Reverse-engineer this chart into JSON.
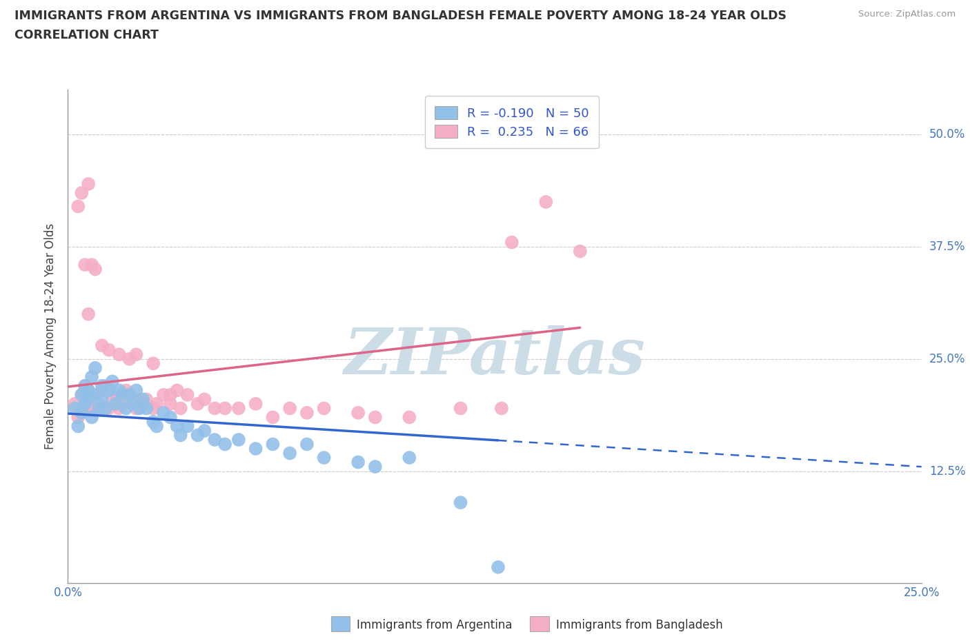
{
  "title_line1": "IMMIGRANTS FROM ARGENTINA VS IMMIGRANTS FROM BANGLADESH FEMALE POVERTY AMONG 18-24 YEAR OLDS",
  "title_line2": "CORRELATION CHART",
  "source_text": "Source: ZipAtlas.com",
  "ylabel": "Female Poverty Among 18-24 Year Olds",
  "xlim": [
    0.0,
    0.25
  ],
  "ylim": [
    0.0,
    0.55
  ],
  "argentina_color": "#92c0e8",
  "bangladesh_color": "#f4afc4",
  "argentina_R": -0.19,
  "argentina_N": 50,
  "bangladesh_R": 0.235,
  "bangladesh_N": 66,
  "watermark": "ZIPatlas",
  "watermark_color": "#ccdde8",
  "legend_label_argentina": "Immigrants from Argentina",
  "legend_label_bangladesh": "Immigrants from Bangladesh",
  "arg_line_color": "#3366cc",
  "ban_line_color": "#dd6688",
  "argentina_scatter_x": [
    0.002,
    0.003,
    0.004,
    0.004,
    0.005,
    0.005,
    0.006,
    0.006,
    0.007,
    0.007,
    0.008,
    0.008,
    0.009,
    0.01,
    0.01,
    0.011,
    0.012,
    0.013,
    0.014,
    0.015,
    0.016,
    0.017,
    0.018,
    0.019,
    0.02,
    0.021,
    0.022,
    0.023,
    0.025,
    0.026,
    0.028,
    0.03,
    0.032,
    0.033,
    0.035,
    0.038,
    0.04,
    0.043,
    0.046,
    0.05,
    0.055,
    0.06,
    0.065,
    0.07,
    0.075,
    0.085,
    0.09,
    0.1,
    0.115,
    0.126
  ],
  "argentina_scatter_y": [
    0.195,
    0.175,
    0.21,
    0.19,
    0.22,
    0.2,
    0.215,
    0.205,
    0.23,
    0.185,
    0.24,
    0.21,
    0.195,
    0.22,
    0.205,
    0.195,
    0.215,
    0.225,
    0.2,
    0.215,
    0.21,
    0.195,
    0.21,
    0.2,
    0.215,
    0.195,
    0.205,
    0.195,
    0.18,
    0.175,
    0.19,
    0.185,
    0.175,
    0.165,
    0.175,
    0.165,
    0.17,
    0.16,
    0.155,
    0.16,
    0.15,
    0.155,
    0.145,
    0.155,
    0.14,
    0.135,
    0.13,
    0.14,
    0.09,
    0.018
  ],
  "bangladesh_scatter_x": [
    0.002,
    0.003,
    0.004,
    0.004,
    0.005,
    0.005,
    0.006,
    0.006,
    0.007,
    0.007,
    0.008,
    0.009,
    0.01,
    0.01,
    0.011,
    0.012,
    0.013,
    0.014,
    0.015,
    0.016,
    0.017,
    0.018,
    0.019,
    0.02,
    0.021,
    0.022,
    0.023,
    0.025,
    0.026,
    0.028,
    0.03,
    0.032,
    0.033,
    0.035,
    0.038,
    0.04,
    0.043,
    0.046,
    0.05,
    0.055,
    0.06,
    0.065,
    0.07,
    0.075,
    0.085,
    0.09,
    0.1,
    0.115,
    0.127,
    0.003,
    0.004,
    0.005,
    0.006,
    0.006,
    0.007,
    0.008,
    0.01,
    0.012,
    0.015,
    0.018,
    0.02,
    0.025,
    0.03,
    0.13,
    0.14,
    0.15
  ],
  "bangladesh_scatter_y": [
    0.2,
    0.185,
    0.21,
    0.195,
    0.205,
    0.22,
    0.195,
    0.215,
    0.205,
    0.195,
    0.21,
    0.2,
    0.215,
    0.195,
    0.22,
    0.195,
    0.205,
    0.21,
    0.195,
    0.2,
    0.215,
    0.21,
    0.205,
    0.195,
    0.205,
    0.2,
    0.205,
    0.195,
    0.2,
    0.21,
    0.2,
    0.215,
    0.195,
    0.21,
    0.2,
    0.205,
    0.195,
    0.195,
    0.195,
    0.2,
    0.185,
    0.195,
    0.19,
    0.195,
    0.19,
    0.185,
    0.185,
    0.195,
    0.195,
    0.42,
    0.435,
    0.355,
    0.3,
    0.445,
    0.355,
    0.35,
    0.265,
    0.26,
    0.255,
    0.25,
    0.255,
    0.245,
    0.21,
    0.38,
    0.425,
    0.37
  ]
}
